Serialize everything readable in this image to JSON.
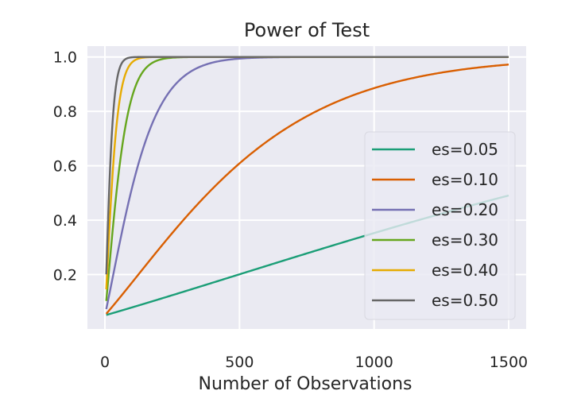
{
  "chart_data": {
    "type": "line",
    "title": "Power of Test",
    "xlabel": "Number of Observations",
    "ylabel": "",
    "xlim": [
      -65,
      1565
    ],
    "ylim": [
      0.0,
      1.04
    ],
    "xticks": [
      0,
      500,
      1000,
      1500
    ],
    "xtick_labels": [
      "0",
      "500",
      "1000",
      "1500"
    ],
    "yticks": [
      0.2,
      0.4,
      0.6,
      0.8,
      1.0
    ],
    "ytick_labels": [
      "0.2",
      "0.4",
      "0.6",
      "0.8",
      "1.0"
    ],
    "grid": true,
    "legend_position": "lower-right",
    "background": "#eaeaf2",
    "alpha": 0.05,
    "x_range": [
      5,
      1500
    ],
    "series": [
      {
        "name": "es=0.05",
        "effect_size": 0.05,
        "color": "#1b9e77"
      },
      {
        "name": "es=0.10",
        "effect_size": 0.1,
        "color": "#d95f02"
      },
      {
        "name": "es=0.20",
        "effect_size": 0.2,
        "color": "#7570b3"
      },
      {
        "name": "es=0.30",
        "effect_size": 0.3,
        "color": "#66a61e"
      },
      {
        "name": "es=0.40",
        "effect_size": 0.4,
        "color": "#e6ab02"
      },
      {
        "name": "es=0.50",
        "effect_size": 0.5,
        "color": "#666666"
      }
    ]
  }
}
